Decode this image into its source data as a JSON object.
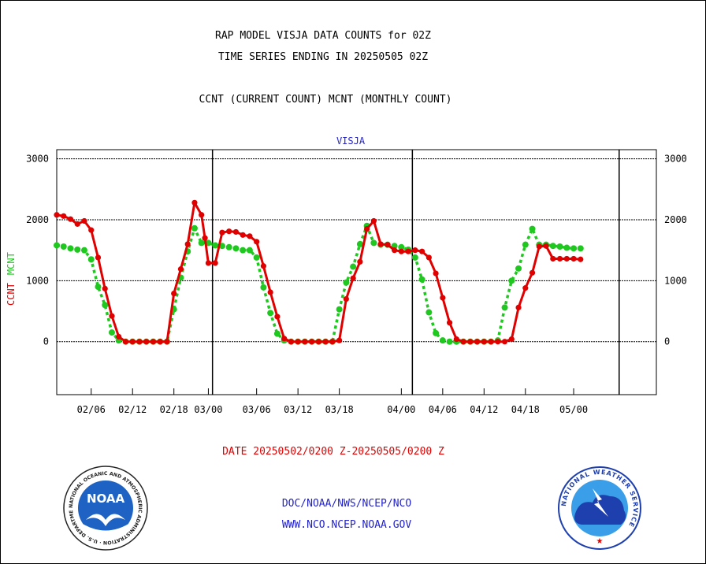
{
  "header": {
    "title_line1": "RAP MODEL VISJA DATA COUNTS for 02Z",
    "title_line2": "TIME SERIES ENDING IN 20250505 02Z",
    "title_line3": "CCNT (CURRENT COUNT) MCNT (MONTHLY COUNT)"
  },
  "footer": {
    "date_range": "DATE 20250502/0200 Z-20250505/0200 Z",
    "org": "DOC/NOAA/NWS/NCEP/NCO",
    "url": "WWW.NCO.NCEP.NOAA.GOV"
  },
  "logos": {
    "noaa_text": "NOAA",
    "noaa_ring_text": "NATIONAL OCEANIC AND ATMOSPHERIC ADMINISTRATION · U.S. DEPARTMENT OF COMMERCE",
    "nws_ring_text": "NATIONAL WEATHER SERVICE"
  },
  "colors": {
    "ccnt": "#e00000",
    "mcnt": "#1ec81e",
    "label_blue": "#2222cc"
  },
  "chart_data": {
    "type": "line",
    "title": "VISJA",
    "ylabel_ccnt": "CCNT",
    "ylabel_mcnt": "MCNT",
    "ylim": [
      -870,
      3150
    ],
    "yticks": [
      0,
      1000,
      2000,
      3000
    ],
    "ytick_labels": [
      "0",
      "1000",
      "2000",
      "3000"
    ],
    "xlim_days": [
      -4.0,
      83.0
    ],
    "xticks": [
      {
        "day": 1,
        "label": "02/06"
      },
      {
        "day": 7,
        "label": "02/12"
      },
      {
        "day": 13,
        "label": "02/18"
      },
      {
        "day": 18,
        "label": "03/00"
      },
      {
        "day": 25,
        "label": "03/06"
      },
      {
        "day": 31,
        "label": "03/12"
      },
      {
        "day": 37,
        "label": "03/18"
      },
      {
        "day": 46,
        "label": "04/00"
      },
      {
        "day": 52,
        "label": "04/06"
      },
      {
        "day": 58,
        "label": "04/12"
      },
      {
        "day": 64,
        "label": "04/18"
      },
      {
        "day": 71,
        "label": "05/00"
      }
    ],
    "month_boundaries_days": [
      18.6,
      47.6,
      77.6
    ],
    "grid": true,
    "series": [
      {
        "name": "CCNT",
        "x": [
          -4,
          -3,
          -2,
          -1,
          0,
          1,
          2,
          3,
          4,
          5,
          6,
          7,
          8,
          9,
          10,
          11,
          12,
          13,
          14,
          15,
          16,
          17,
          17.5,
          18,
          19,
          20,
          21,
          22,
          23,
          24,
          25,
          26,
          27,
          28,
          29,
          30,
          31,
          32,
          33,
          34,
          35,
          36,
          37,
          38,
          39,
          40,
          41,
          42,
          43,
          44,
          45,
          46,
          47,
          48,
          49,
          50,
          51,
          52,
          53,
          54,
          55,
          56,
          57,
          58,
          59,
          60,
          61,
          62,
          63,
          64,
          65,
          66,
          67,
          68,
          69,
          70,
          71,
          72
        ],
        "values": [
          2080,
          2060,
          2010,
          1930,
          1980,
          1830,
          1380,
          870,
          420,
          80,
          0,
          0,
          0,
          0,
          0,
          0,
          0,
          790,
          1190,
          1600,
          2280,
          2080,
          1700,
          1290,
          1290,
          1790,
          1810,
          1800,
          1750,
          1730,
          1640,
          1240,
          810,
          410,
          50,
          0,
          0,
          0,
          0,
          0,
          0,
          0,
          20,
          700,
          1040,
          1310,
          1850,
          1980,
          1600,
          1590,
          1500,
          1480,
          1480,
          1500,
          1480,
          1380,
          1120,
          720,
          310,
          40,
          0,
          0,
          0,
          0,
          0,
          0,
          0,
          40,
          560,
          880,
          1130,
          1560,
          1570,
          1360,
          1360,
          1360,
          1360,
          1350
        ]
      },
      {
        "name": "MCNT",
        "x": [
          -4,
          -3,
          -2,
          -1,
          0,
          1,
          2,
          3,
          4,
          5,
          6,
          7,
          8,
          9,
          10,
          11,
          12,
          13,
          14,
          15,
          16,
          17,
          18,
          19,
          20,
          21,
          22,
          23,
          24,
          25,
          26,
          27,
          28,
          29,
          30,
          31,
          32,
          33,
          34,
          35,
          36,
          37,
          38,
          39,
          40,
          41,
          42,
          43,
          44,
          45,
          46,
          47,
          48,
          49,
          50,
          51,
          52,
          53,
          54,
          55,
          56,
          57,
          58,
          59,
          60,
          61,
          62,
          63,
          64,
          65,
          66,
          67,
          68,
          69,
          70,
          71,
          72
        ],
        "values": [
          1580,
          1560,
          1530,
          1510,
          1500,
          1350,
          900,
          600,
          150,
          20,
          0,
          0,
          0,
          0,
          0,
          0,
          0,
          530,
          1050,
          1480,
          1860,
          1620,
          1620,
          1580,
          1570,
          1550,
          1530,
          1500,
          1500,
          1380,
          890,
          470,
          130,
          20,
          0,
          0,
          0,
          0,
          0,
          0,
          0,
          530,
          970,
          1230,
          1600,
          1900,
          1620,
          1590,
          1590,
          1570,
          1550,
          1510,
          1380,
          1020,
          480,
          140,
          20,
          0,
          0,
          0,
          0,
          0,
          0,
          0,
          20,
          560,
          1000,
          1200,
          1590,
          1850,
          1590,
          1590,
          1570,
          1560,
          1540,
          1530,
          1530
        ]
      }
    ]
  }
}
